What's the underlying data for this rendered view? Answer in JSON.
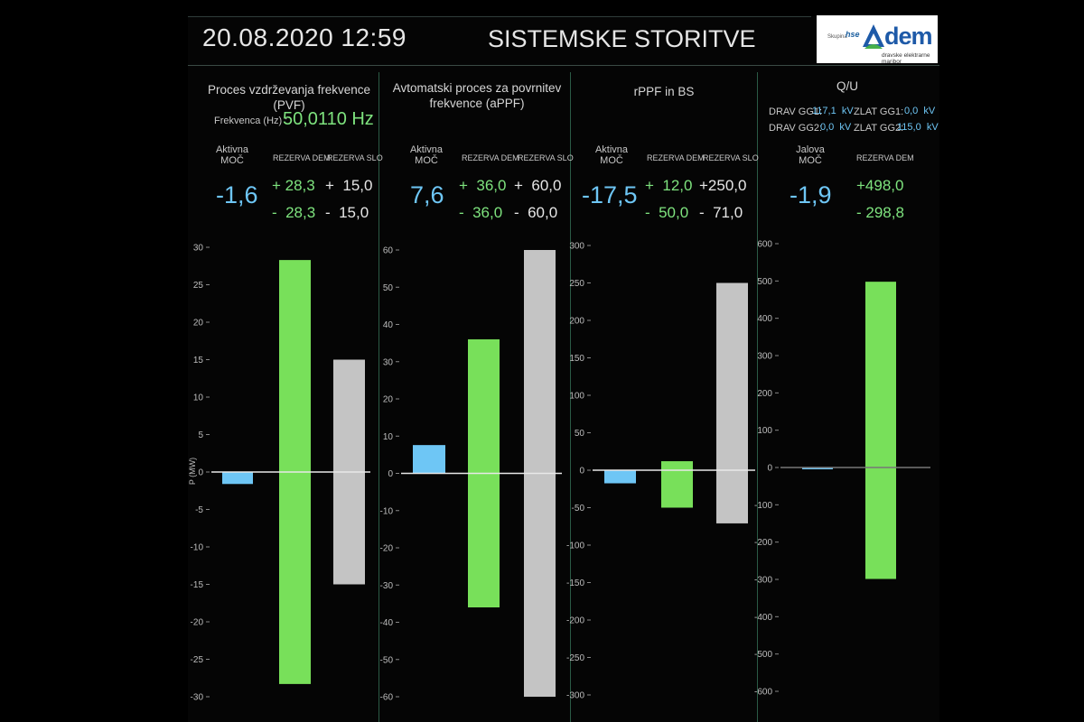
{
  "header": {
    "datetime": "20.08.2020 12:59",
    "title": "SISTEMSKE STORITVE",
    "logo": {
      "group_text": "Skupina",
      "hse_text": "hse",
      "brand": "dem",
      "subtitle": "dravske elektrarne maribor"
    }
  },
  "panels": [
    {
      "title": "Proces vzdrževanja frekvence (PVF)",
      "freq_label": "Frekvenca (Hz) :",
      "freq_value": "50,0110  Hz",
      "col1_label": "Aktivna\nMOČ",
      "col2_label": "REZERVA DEM",
      "col3_label": "REZERVA SLO",
      "main_value": "-1,6",
      "dem_plus": "+ 28,3",
      "dem_minus": "-  28,3",
      "slo_plus": "+  15,0",
      "slo_minus": "-  15,0"
    },
    {
      "title": "Avtomatski proces za povrnitev\nfrekvence (aPPF)",
      "col1_label": "Aktivna\nMOČ",
      "col2_label": "REZERVA DEM",
      "col3_label": "REZERVA SLO",
      "main_value": "7,6",
      "dem_plus": "+  36,0",
      "dem_minus": "-  36,0",
      "slo_plus": "+  60,0",
      "slo_minus": "-  60,0"
    },
    {
      "title": "rPPF in BS",
      "col1_label": "Aktivna\nMOČ",
      "col2_label": "REZERVA DEM",
      "col3_label": "REZERVA SLO",
      "main_value": "-17,5",
      "dem_plus": "+  12,0",
      "dem_minus": "-  50,0",
      "slo_plus": "+250,0",
      "slo_minus": "-  71,0"
    },
    {
      "title": "Q/U",
      "drav_gg1_label": "DRAV GG1:",
      "drav_gg1_value": "117,1  kV",
      "drav_gg2_label": "DRAV GG2:",
      "drav_gg2_value": "0,0  kV",
      "zlat_gg1_label": "ZLAT GG1:",
      "zlat_gg1_value": "0,0  kV",
      "zlat_gg2_label": "ZLAT GG2:",
      "zlat_gg2_value": "115,0  kV",
      "col1_label": "Jalova\nMOČ",
      "col2_label": "REZERVA DEM",
      "main_value": "-1,9",
      "dem_plus": "+498,0",
      "dem_minus": "- 298,8"
    }
  ],
  "colors": {
    "blue": "#6ec6f5",
    "green": "#78e05a",
    "grey": "#c4c4c4",
    "background": "#000000"
  },
  "chart_data": [
    {
      "type": "bar",
      "ylabel": "P (MW)",
      "ylim": [
        -30,
        30
      ],
      "yticks": [
        -30,
        -25,
        -20,
        -15,
        -10,
        -5,
        0,
        5,
        10,
        15,
        20,
        25,
        30
      ],
      "bars": [
        {
          "name": "Aktivna MOČ",
          "color": "blue",
          "low": -1.6,
          "high": 0
        },
        {
          "name": "REZERVA DEM",
          "color": "green",
          "low": -28.3,
          "high": 28.3
        },
        {
          "name": "REZERVA SLO",
          "color": "grey",
          "low": -15.0,
          "high": 15.0
        }
      ]
    },
    {
      "type": "bar",
      "ylim": [
        -60,
        60
      ],
      "yticks": [
        -60,
        -50,
        -40,
        -30,
        -20,
        -10,
        0,
        10,
        20,
        30,
        40,
        50,
        60
      ],
      "bars": [
        {
          "name": "Aktivna MOČ",
          "color": "blue",
          "low": 0,
          "high": 7.6
        },
        {
          "name": "REZERVA DEM",
          "color": "green",
          "low": -36.0,
          "high": 36.0
        },
        {
          "name": "REZERVA SLO",
          "color": "grey",
          "low": -60.0,
          "high": 60.0
        }
      ]
    },
    {
      "type": "bar",
      "ylim": [
        -300,
        300
      ],
      "yticks": [
        -300,
        -250,
        -200,
        -150,
        -100,
        -50,
        0,
        50,
        100,
        150,
        200,
        250,
        300
      ],
      "bars": [
        {
          "name": "Aktivna MOČ",
          "color": "blue",
          "low": -17.5,
          "high": 0
        },
        {
          "name": "REZERVA DEM",
          "color": "green",
          "low": -50.0,
          "high": 12.0
        },
        {
          "name": "REZERVA SLO",
          "color": "grey",
          "low": -71.0,
          "high": 250.0
        }
      ]
    },
    {
      "type": "bar",
      "ylim": [
        -600,
        600
      ],
      "yticks": [
        -600,
        -500,
        -400,
        -300,
        -200,
        -100,
        0,
        100,
        200,
        300,
        400,
        500,
        600
      ],
      "bars": [
        {
          "name": "Jalova MOČ",
          "color": "blue",
          "low": -1.9,
          "high": 0
        },
        {
          "name": "REZERVA DEM",
          "color": "green",
          "low": -298.8,
          "high": 498.0
        }
      ]
    }
  ]
}
